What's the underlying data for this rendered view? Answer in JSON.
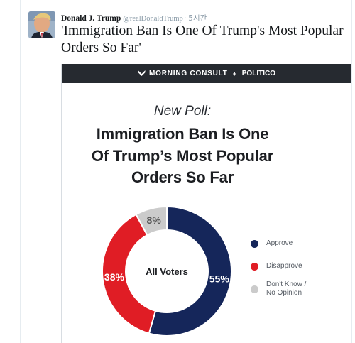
{
  "tweet": {
    "name": "Donald J. Trump",
    "handle": "@realDonaldTrump",
    "separator": "·",
    "time": "5시간",
    "text": "'Immigration Ban Is One Of Trump's Most Popular Orders So Far'"
  },
  "card": {
    "banner": {
      "left": "MORNING CONSULT",
      "plus": "+",
      "right": "POLITICO"
    },
    "subtitle": "New Poll:",
    "title_lines": [
      "Immigration Ban Is One",
      "Of Trump’s Most Popular",
      "Orders So Far"
    ]
  },
  "chart_data": {
    "type": "pie",
    "style": "donut",
    "center_label": "All Voters",
    "slices": [
      {
        "name": "Approve",
        "value": 55,
        "label": "55%",
        "color": "#15265a"
      },
      {
        "name": "Disapprove",
        "value": 38,
        "label": "38%",
        "color": "#e01d25"
      },
      {
        "name": "Don't Know / No Opinion",
        "value": 8,
        "label": "8%",
        "color": "#cbcbcb"
      }
    ],
    "legend": [
      {
        "name": "Approve",
        "label": "Approve",
        "color": "#15265a"
      },
      {
        "name": "Disapprove",
        "label": "Disapprove",
        "color": "#e01d25"
      },
      {
        "name": "Don't Know / No Opinion",
        "label_lines": [
          "Don't Know /",
          "No Opinion"
        ],
        "color": "#cbcbcb"
      }
    ],
    "legend_position": "right"
  },
  "colors": {
    "banner_bg": "#262a30",
    "approve": "#15265a",
    "disapprove": "#e01d25",
    "no_opinion": "#cbcbcb"
  }
}
